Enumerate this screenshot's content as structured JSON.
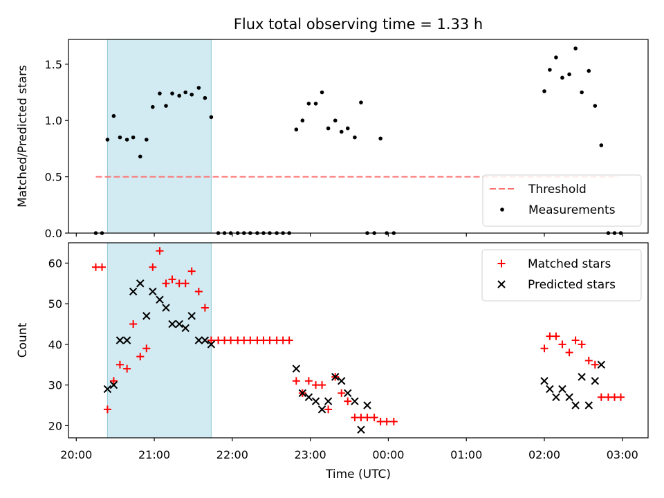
{
  "chart_data": {
    "title": "Flux total observing time = 1.33 h",
    "xlabel": "Time (UTC)",
    "x_unit": "hours since 20:00 UTC",
    "x_ticks": [
      {
        "label": "20:00",
        "value": 0
      },
      {
        "label": "21:00",
        "value": 1
      },
      {
        "label": "22:00",
        "value": 2
      },
      {
        "label": "23:00",
        "value": 3
      },
      {
        "label": "00:00",
        "value": 4
      },
      {
        "label": "01:00",
        "value": 5
      },
      {
        "label": "02:00",
        "value": 6
      },
      {
        "label": "03:00",
        "value": 7
      }
    ],
    "xlim": [
      -0.1,
      7.33
    ],
    "shaded_span": {
      "x0": 0.4,
      "x1": 1.73,
      "color": "#add8e6"
    },
    "panels": [
      {
        "type": "scatter",
        "ylabel": "Matched/Predicted stars",
        "ylim": [
          0.0,
          1.72
        ],
        "y_ticks": [
          0.0,
          0.5,
          1.0,
          1.5
        ],
        "y_tick_labels": [
          "0.0",
          "0.5",
          "1.0",
          "1.5"
        ],
        "threshold": {
          "name": "Threshold",
          "value": 0.5,
          "x0": 0.25,
          "x1": 6.95,
          "color": "#ff7070"
        },
        "legend": {
          "position": "lower-right",
          "entries": [
            "Threshold",
            "Measurements"
          ]
        },
        "series": [
          {
            "name": "Measurements",
            "color": "#000000",
            "marker": "dot",
            "x": [
              0.25,
              0.33,
              0.4,
              0.48,
              0.56,
              0.65,
              0.73,
              0.82,
              0.9,
              0.98,
              1.07,
              1.15,
              1.23,
              1.32,
              1.4,
              1.48,
              1.57,
              1.65,
              1.73,
              1.82,
              1.9,
              1.98,
              2.07,
              2.15,
              2.23,
              2.32,
              2.4,
              2.48,
              2.57,
              2.65,
              2.73,
              2.82,
              2.9,
              2.98,
              3.07,
              3.15,
              3.23,
              3.32,
              3.4,
              3.48,
              3.57,
              3.65,
              3.73,
              3.82,
              3.9,
              3.98,
              4.07,
              6.0,
              6.07,
              6.15,
              6.23,
              6.32,
              6.4,
              6.48,
              6.57,
              6.65,
              6.73,
              6.82,
              6.9,
              6.98
            ],
            "y": [
              0.0,
              0.0,
              0.83,
              1.04,
              0.85,
              0.83,
              0.85,
              0.68,
              0.83,
              1.12,
              1.24,
              1.13,
              1.24,
              1.22,
              1.25,
              1.23,
              1.29,
              1.2,
              1.03,
              0.0,
              0.0,
              0.0,
              0.0,
              0.0,
              0.0,
              0.0,
              0.0,
              0.0,
              0.0,
              0.0,
              0.0,
              0.92,
              1.0,
              1.15,
              1.15,
              1.25,
              0.93,
              1.0,
              0.9,
              0.93,
              0.85,
              1.16,
              0.0,
              0.0,
              0.84,
              0.0,
              0.0,
              1.26,
              1.45,
              1.56,
              1.38,
              1.41,
              1.64,
              1.25,
              1.44,
              1.13,
              0.78,
              0.0,
              0.0,
              0.0
            ]
          }
        ]
      },
      {
        "type": "scatter",
        "ylabel": "Count",
        "ylim": [
          17,
          65
        ],
        "y_ticks": [
          20,
          30,
          40,
          50,
          60
        ],
        "y_tick_labels": [
          "20",
          "30",
          "40",
          "50",
          "60"
        ],
        "legend": {
          "position": "top-right",
          "entries": [
            "Matched stars",
            "Predicted stars"
          ]
        },
        "series": [
          {
            "name": "Matched stars",
            "color": "#ff0000",
            "marker": "plus",
            "x": [
              0.25,
              0.33,
              0.4,
              0.48,
              0.56,
              0.65,
              0.73,
              0.82,
              0.9,
              0.98,
              1.07,
              1.15,
              1.23,
              1.32,
              1.4,
              1.48,
              1.57,
              1.65,
              1.73,
              1.82,
              1.9,
              1.98,
              2.07,
              2.15,
              2.23,
              2.32,
              2.4,
              2.48,
              2.57,
              2.65,
              2.73,
              2.82,
              2.9,
              2.98,
              3.07,
              3.15,
              3.23,
              3.32,
              3.4,
              3.48,
              3.57,
              3.65,
              3.73,
              3.82,
              3.9,
              3.98,
              4.07,
              6.0,
              6.07,
              6.15,
              6.23,
              6.32,
              6.4,
              6.48,
              6.57,
              6.65,
              6.73,
              6.82,
              6.9,
              6.98
            ],
            "y": [
              59,
              59,
              24,
              31,
              35,
              34,
              45,
              37,
              39,
              59,
              63,
              55,
              56,
              55,
              55,
              58,
              53,
              49,
              41,
              41,
              41,
              41,
              41,
              41,
              41,
              41,
              41,
              41,
              41,
              41,
              41,
              31,
              28,
              31,
              30,
              30,
              24,
              32,
              28,
              26,
              22,
              22,
              22,
              22,
              21,
              21,
              21,
              39,
              42,
              42,
              40,
              38,
              41,
              40,
              36,
              35,
              27,
              27,
              27,
              27
            ]
          },
          {
            "name": "Predicted stars",
            "color": "#000000",
            "marker": "x",
            "x": [
              0.4,
              0.48,
              0.56,
              0.65,
              0.73,
              0.82,
              0.9,
              0.98,
              1.07,
              1.15,
              1.23,
              1.32,
              1.4,
              1.48,
              1.57,
              1.65,
              1.73,
              2.82,
              2.9,
              2.98,
              3.07,
              3.15,
              3.23,
              3.32,
              3.4,
              3.48,
              3.57,
              3.65,
              3.73,
              6.0,
              6.07,
              6.15,
              6.23,
              6.32,
              6.4,
              6.48,
              6.57,
              6.65,
              6.73
            ],
            "y": [
              29,
              30,
              41,
              41,
              53,
              55,
              47,
              53,
              51,
              49,
              45,
              45,
              44,
              47,
              41,
              41,
              40,
              34,
              28,
              27,
              26,
              24,
              26,
              32,
              31,
              28,
              26,
              19,
              25,
              31,
              29,
              27,
              29,
              27,
              25,
              32,
              25,
              31,
              35
            ]
          }
        ]
      }
    ]
  }
}
